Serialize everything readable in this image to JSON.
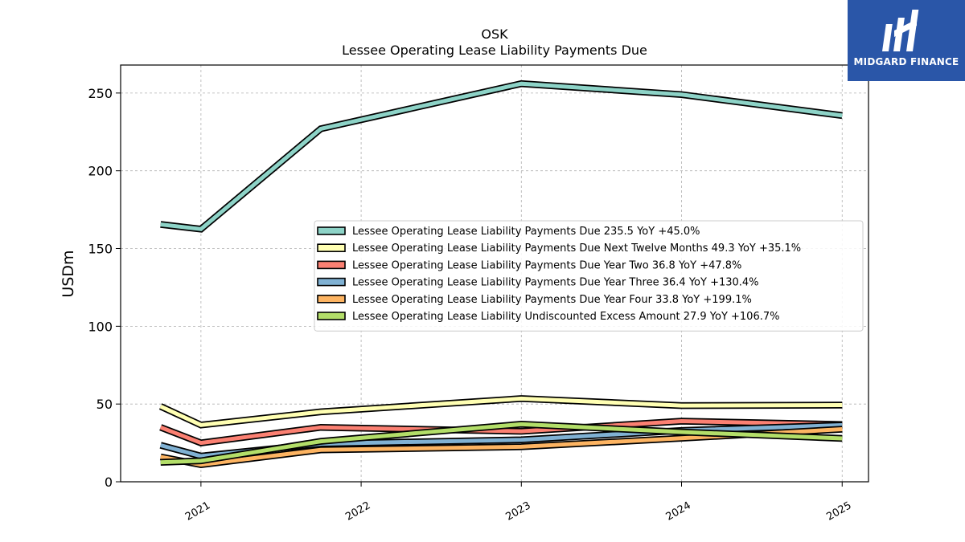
{
  "brand": {
    "name": "MIDGARD FINANCE",
    "color": "#2a56a8"
  },
  "chart_data": {
    "type": "line",
    "title": "OSK",
    "subtitle": "Lessee Operating Lease Liability Payments Due",
    "xlabel": "",
    "ylabel": "USDm",
    "x": [
      "2020-09-30",
      "2020-12-31",
      "2021-09-30",
      "2022-12-31",
      "2023-12-31",
      "2024-12-31"
    ],
    "x_ticks": [
      "2021",
      "2022",
      "2023",
      "2024",
      "2025"
    ],
    "y_ticks": [
      0,
      50,
      100,
      150,
      200,
      250
    ],
    "ylim": [
      0,
      268
    ],
    "grid": true,
    "legend_position": "center-right",
    "series": [
      {
        "name": "Lessee Operating Lease Liability Payments Due",
        "legend": "Lessee Operating Lease Liability Payments Due  235.5 YoY +45.0%",
        "color": "#8dd3c7",
        "values": [
          165.5,
          162.5,
          227.0,
          256.0,
          249.0,
          235.5
        ]
      },
      {
        "name": "Lessee Operating Lease Liability Payments Due Next Twelve Months",
        "legend": "Lessee Operating Lease Liability Payments Due Next Twelve Months  49.3 YoY +35.1%",
        "color": "#ffffb3",
        "values": [
          48.5,
          36.5,
          45.0,
          53.5,
          49.0,
          49.3
        ]
      },
      {
        "name": "Lessee Operating Lease Liability Payments Due Year Two",
        "legend": "Lessee Operating Lease Liability Payments Due Year Two  36.8 YoY +47.8%",
        "color": "#fb8072",
        "values": [
          35.0,
          25.0,
          35.0,
          32.5,
          39.0,
          36.8
        ]
      },
      {
        "name": "Lessee Operating Lease Liability Payments Due Year Three",
        "legend": "Lessee Operating Lease Liability Payments Due Year Three  36.4 YoY +130.4%",
        "color": "#80b1d3",
        "values": [
          23.5,
          16.5,
          24.5,
          27.0,
          33.0,
          36.4
        ]
      },
      {
        "name": "Lessee Operating Lease Liability Payments Due Year Four",
        "legend": "Lessee Operating Lease Liability Payments Due Year Four  33.8 YoY +199.1%",
        "color": "#fdb462",
        "values": [
          16.0,
          11.0,
          20.5,
          22.5,
          28.0,
          33.8
        ]
      },
      {
        "name": "Lessee Operating Lease Liability Undiscounted Excess Amount",
        "legend": "Lessee Operating Lease Liability Undiscounted Excess Amount  27.9 YoY +106.7%",
        "color": "#b3de69",
        "values": [
          12.5,
          13.5,
          26.0,
          37.0,
          32.0,
          27.9
        ]
      }
    ]
  }
}
